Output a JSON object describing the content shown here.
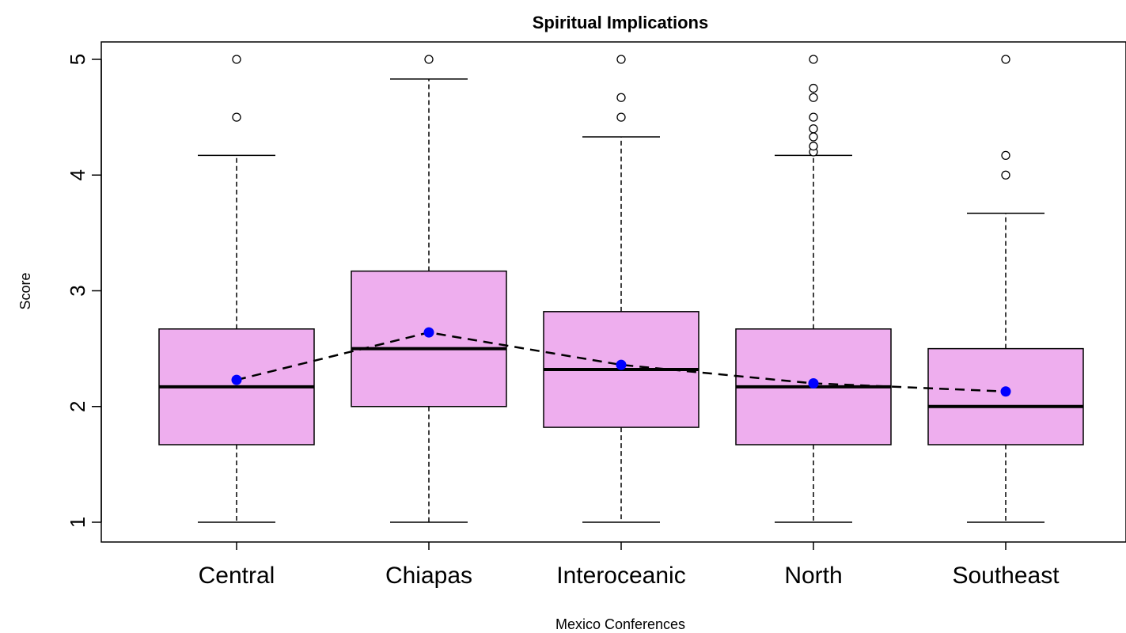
{
  "chart_data": {
    "type": "boxplot",
    "title": "Spiritual Implications",
    "xlabel": "Mexico Conferences",
    "ylabel": "Score",
    "ylim": [
      0.9,
      5.15
    ],
    "yticks": [
      "1",
      "2",
      "3",
      "4",
      "5"
    ],
    "grid": false,
    "legend": "none",
    "box_fill": "#eeaeee",
    "mean_color": "#0000ff",
    "categories": [
      "Central",
      "Chiapas",
      "Interoceanic",
      "North",
      "Southeast"
    ],
    "boxes": [
      {
        "category": "Central",
        "min": 1.0,
        "q1": 1.67,
        "median": 2.17,
        "q3": 2.67,
        "max": 4.17,
        "mean": 2.23,
        "outliers": [
          4.5,
          5.0
        ]
      },
      {
        "category": "Chiapas",
        "min": 1.0,
        "q1": 2.0,
        "median": 2.5,
        "q3": 3.17,
        "max": 4.83,
        "mean": 2.64,
        "outliers": [
          5.0
        ]
      },
      {
        "category": "Interoceanic",
        "min": 1.0,
        "q1": 1.82,
        "median": 2.32,
        "q3": 2.82,
        "max": 4.33,
        "mean": 2.36,
        "outliers": [
          4.5,
          4.67,
          5.0
        ]
      },
      {
        "category": "North",
        "min": 1.0,
        "q1": 1.67,
        "median": 2.17,
        "q3": 2.67,
        "max": 4.17,
        "mean": 2.2,
        "outliers": [
          4.2,
          4.25,
          4.33,
          4.4,
          4.5,
          4.67,
          4.75,
          5.0
        ]
      },
      {
        "category": "Southeast",
        "min": 1.0,
        "q1": 1.67,
        "median": 2.0,
        "q3": 2.5,
        "max": 3.67,
        "mean": 2.13,
        "outliers": [
          4.0,
          4.17,
          5.0
        ]
      }
    ],
    "mean_line": "dashed"
  }
}
